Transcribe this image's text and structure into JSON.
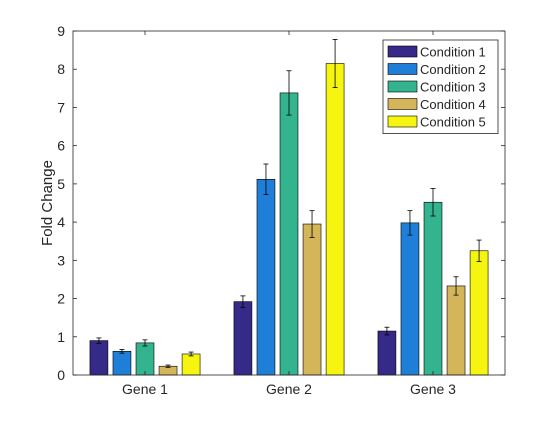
{
  "chart_data": {
    "type": "bar",
    "title": "",
    "xlabel": "",
    "ylabel": "Fold Change",
    "ylim": [
      0,
      9
    ],
    "yticks": [
      0,
      1,
      2,
      3,
      4,
      5,
      6,
      7,
      8,
      9
    ],
    "categories": [
      "Gene 1",
      "Gene 2",
      "Gene 3"
    ],
    "series": [
      {
        "name": "Condition 1",
        "color": "#352a87",
        "values": [
          0.9,
          1.92,
          1.15
        ],
        "errors": [
          0.07,
          0.15,
          0.1
        ]
      },
      {
        "name": "Condition 2",
        "color": "#1f7fd8",
        "values": [
          0.62,
          5.12,
          3.98
        ],
        "errors": [
          0.05,
          0.4,
          0.32
        ]
      },
      {
        "name": "Condition 3",
        "color": "#34b38f",
        "values": [
          0.84,
          7.38,
          4.52
        ],
        "errors": [
          0.08,
          0.58,
          0.36
        ]
      },
      {
        "name": "Condition 4",
        "color": "#d4b55a",
        "values": [
          0.23,
          3.95,
          2.33
        ],
        "errors": [
          0.03,
          0.35,
          0.24
        ]
      },
      {
        "name": "Condition 5",
        "color": "#f5f50f",
        "values": [
          0.55,
          8.15,
          3.25
        ],
        "errors": [
          0.05,
          0.63,
          0.28
        ]
      }
    ],
    "legend_position": "top-right",
    "grid": false
  }
}
